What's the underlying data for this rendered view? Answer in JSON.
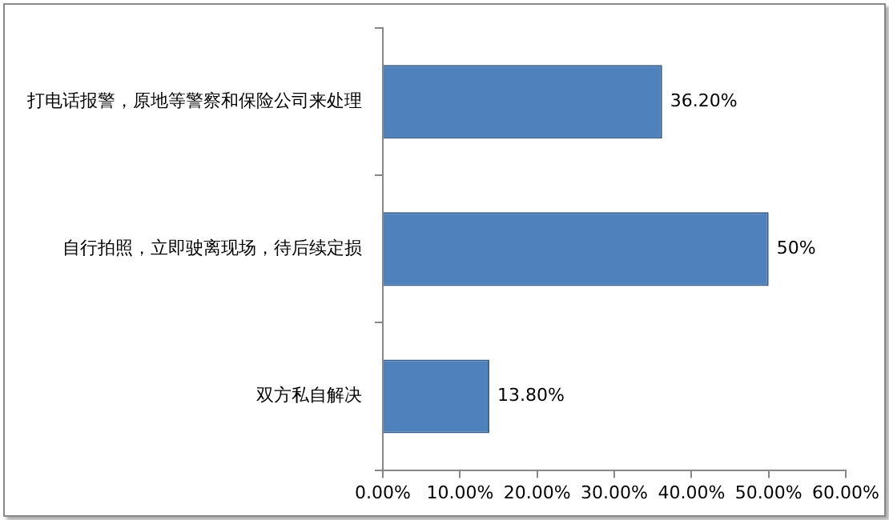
{
  "chart_data": {
    "type": "bar",
    "orientation": "horizontal",
    "categories": [
      "打电话报警，原地等警察和保险公司来处理",
      "自行拍照，立即驶离现场，待后续定损",
      "双方私自解决"
    ],
    "values": [
      36.2,
      50,
      13.8
    ],
    "color": "#4f81bd",
    "value_labels": [
      "36.20%",
      "50%",
      "13.80%"
    ],
    "xlim": [
      0,
      60
    ],
    "xticks": [
      {
        "value": 0,
        "label": "0.00%"
      },
      {
        "value": 10,
        "label": "10.00%"
      },
      {
        "value": 20,
        "label": "20.00%"
      },
      {
        "value": 30,
        "label": "30.00%"
      },
      {
        "value": 40,
        "label": "40.00%"
      },
      {
        "value": 50,
        "label": "50.00%"
      },
      {
        "value": 60,
        "label": "60.00%"
      }
    ],
    "grid": false,
    "legend": false
  }
}
